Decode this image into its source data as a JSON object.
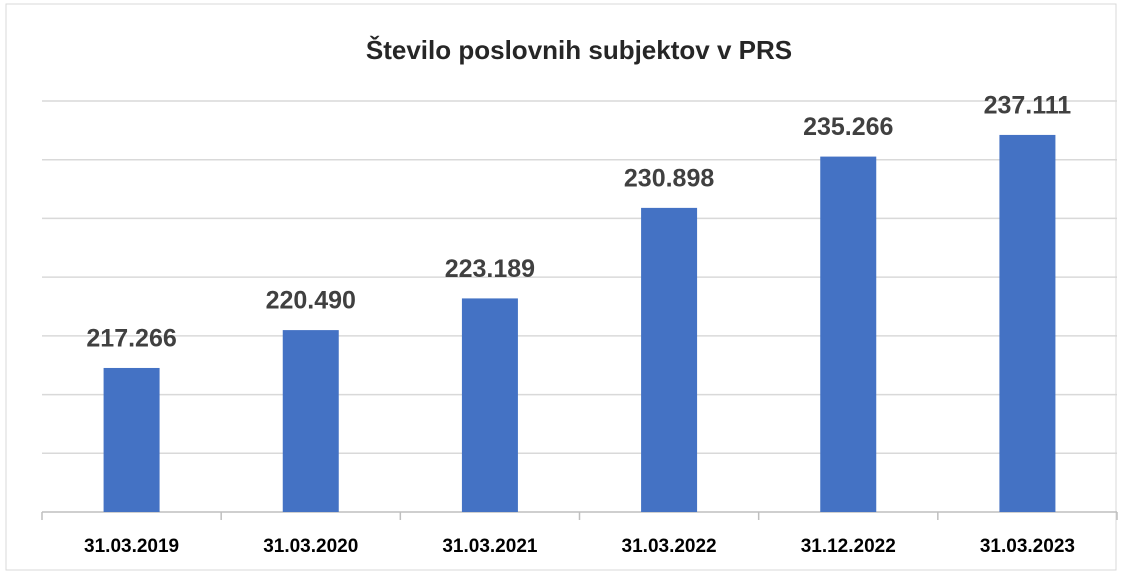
{
  "chart_data": {
    "type": "bar",
    "title": "Število poslovnih subjektov v PRS",
    "categories": [
      "31.03.2019",
      "31.03.2020",
      "31.03.2021",
      "31.03.2022",
      "31.12.2022",
      "31.03.2023"
    ],
    "values": [
      217266,
      220490,
      223189,
      230898,
      235266,
      237111
    ],
    "value_labels": [
      "217.266",
      "220.490",
      "223.189",
      "230.898",
      "235.266",
      "237.111"
    ],
    "color": "#4472c4",
    "ylim": [
      205000,
      240000
    ],
    "yticks": [
      205000,
      210000,
      215000,
      220000,
      225000,
      230000,
      235000,
      240000
    ],
    "grid": true
  }
}
